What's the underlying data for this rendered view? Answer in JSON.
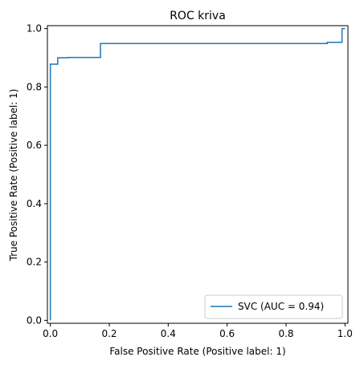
{
  "chart_data": {
    "type": "line",
    "title": "ROC kriva",
    "xlabel": "False Positive Rate (Positive label: 1)",
    "ylabel": "True Positive Rate (Positive label: 1)",
    "xlim": [
      -0.01,
      1.01
    ],
    "ylim": [
      -0.01,
      1.01
    ],
    "xticks": [
      0.0,
      0.2,
      0.4,
      0.6,
      0.8,
      1.0
    ],
    "yticks": [
      0.0,
      0.2,
      0.4,
      0.6,
      0.8,
      1.0
    ],
    "xtick_labels": [
      "0.0",
      "0.2",
      "0.4",
      "0.6",
      "0.8",
      "1.0"
    ],
    "ytick_labels": [
      "0.0",
      "0.2",
      "0.4",
      "0.6",
      "0.8",
      "1.0"
    ],
    "grid": false,
    "legend_position": "lower-right",
    "series": [
      {
        "name": "SVC (AUC = 0.94)",
        "color": "#1f77b4",
        "x": [
          0.0,
          0.0,
          0.005,
          0.005,
          0.025,
          0.025,
          0.06,
          0.06,
          0.17,
          0.17,
          0.94,
          0.94,
          0.99,
          0.99,
          1.0
        ],
        "y": [
          0.0,
          0.878,
          0.878,
          0.878,
          0.878,
          0.9,
          0.9,
          0.901,
          0.901,
          0.949,
          0.949,
          0.953,
          0.953,
          1.0,
          1.0
        ]
      }
    ]
  }
}
